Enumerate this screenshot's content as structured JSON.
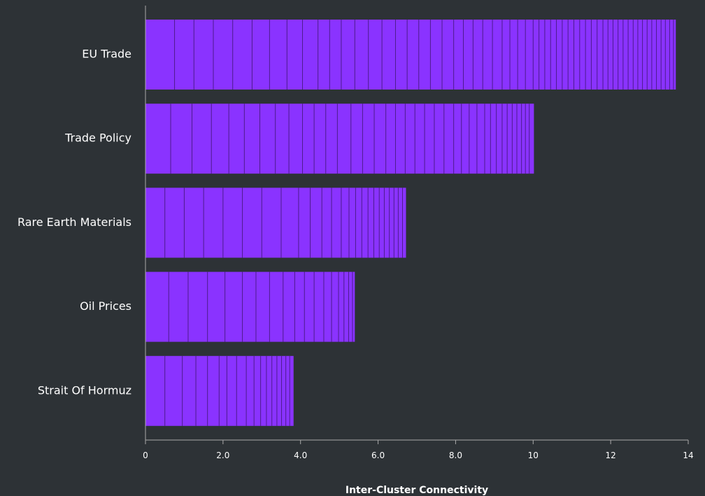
{
  "colors": {
    "background": "#2d3236",
    "bar": "#8a33ff",
    "segment_line": "#3a1466",
    "axis": "#aaaaaa",
    "text": "#ffffff"
  },
  "chart_data": {
    "type": "bar",
    "orientation": "horizontal",
    "title": "",
    "xlabel": "Inter-Cluster Connectivity",
    "ylabel": "",
    "xlim": [
      0,
      14
    ],
    "xticks": [
      0,
      2,
      4,
      6,
      8,
      10,
      12,
      14
    ],
    "xtick_labels": [
      "0",
      "2.0",
      "4.0",
      "6.0",
      "8.0",
      "10",
      "12",
      "14"
    ],
    "categories": [
      "EU Trade",
      "Trade Policy",
      "Rare Earth Materials",
      "Oil Prices",
      "Strait Of Hormuz"
    ],
    "values": [
      13.68,
      10.02,
      6.72,
      5.4,
      3.82
    ],
    "segments": [
      [
        0.0,
        0.75,
        1.25,
        1.75,
        2.25,
        2.75,
        3.2,
        3.65,
        4.05,
        4.45,
        4.75,
        5.05,
        5.4,
        5.75,
        6.1,
        6.45,
        6.75,
        7.05,
        7.35,
        7.65,
        7.95,
        8.2,
        8.45,
        8.7,
        8.95,
        9.2,
        9.4,
        9.6,
        9.8,
        10.0,
        10.15,
        10.3,
        10.45,
        10.6,
        10.75,
        10.9,
        11.05,
        11.2,
        11.35,
        11.5,
        11.65,
        11.8,
        11.93,
        12.06,
        12.19,
        12.32,
        12.45,
        12.58,
        12.7,
        12.82,
        12.94,
        13.06,
        13.18,
        13.3,
        13.41,
        13.52,
        13.62,
        13.68
      ],
      [
        0.0,
        0.65,
        1.2,
        1.7,
        2.15,
        2.55,
        2.95,
        3.35,
        3.7,
        4.05,
        4.35,
        4.65,
        4.95,
        5.3,
        5.6,
        5.9,
        6.2,
        6.45,
        6.7,
        6.95,
        7.2,
        7.45,
        7.7,
        7.95,
        8.15,
        8.35,
        8.55,
        8.75,
        8.9,
        9.05,
        9.2,
        9.33,
        9.46,
        9.58,
        9.7,
        9.8,
        9.9,
        10.02
      ],
      [
        0.0,
        0.5,
        1.0,
        1.5,
        2.0,
        2.5,
        3.0,
        3.5,
        3.95,
        4.25,
        4.55,
        4.8,
        5.05,
        5.25,
        5.42,
        5.58,
        5.74,
        5.89,
        6.03,
        6.16,
        6.29,
        6.41,
        6.52,
        6.63,
        6.72
      ],
      [
        0.0,
        0.6,
        1.1,
        1.6,
        2.05,
        2.5,
        2.85,
        3.2,
        3.55,
        3.85,
        4.1,
        4.35,
        4.6,
        4.8,
        4.98,
        5.12,
        5.24,
        5.34,
        5.4
      ],
      [
        0.0,
        0.5,
        0.95,
        1.3,
        1.6,
        1.9,
        2.1,
        2.35,
        2.6,
        2.8,
        2.97,
        3.12,
        3.26,
        3.39,
        3.51,
        3.62,
        3.72,
        3.82
      ]
    ],
    "grid": false,
    "legend": "none"
  }
}
